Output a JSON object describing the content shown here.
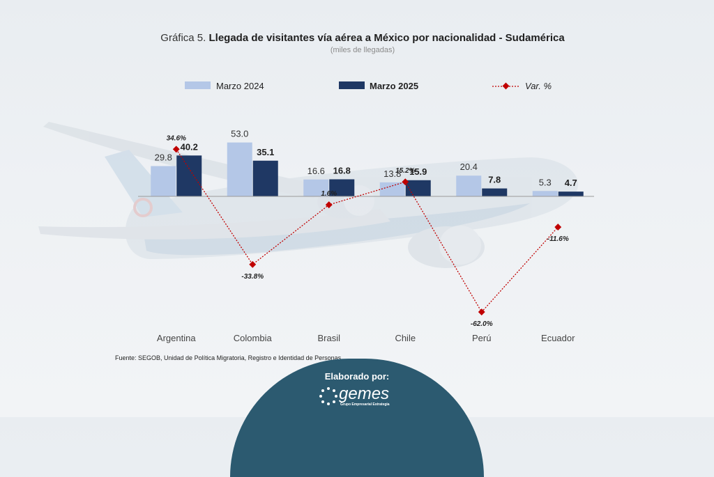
{
  "title_prefix": "Gráfica 5.",
  "title_main": "Llegada de visitantes vía aérea a México por nacionalidad - Sudamérica",
  "subtitle": "(miles de llegadas)",
  "source": "Fuente: SEGOB, Unidad de Política Migratoria, Registro e Identidad de Personas.",
  "footer": {
    "label": "Elaborado por:",
    "logo_text": "gemes",
    "logo_subtext": "Grupo Empresarial Estrategia"
  },
  "colors": {
    "bar_2024": "#b4c7e7",
    "bar_2025": "#1f3864",
    "var_line": "#c00000",
    "footer": "#2c5a70"
  },
  "chart_data": {
    "type": "bar",
    "title": "Llegada de visitantes vía aérea a México por nacionalidad - Sudamérica",
    "subtitle": "(miles de llegadas)",
    "categories": [
      "Argentina",
      "Colombia",
      "Brasil",
      "Chile",
      "Perú",
      "Ecuador"
    ],
    "series": [
      {
        "name": "Marzo 2024",
        "values": [
          29.8,
          53.0,
          16.6,
          13.8,
          20.4,
          5.3
        ],
        "labels": [
          "29.8",
          "53.0",
          "16.6",
          "13.8",
          "20.4",
          "5.3"
        ]
      },
      {
        "name": "Marzo 2025",
        "values": [
          40.2,
          35.1,
          16.8,
          15.9,
          7.8,
          4.7
        ],
        "labels": [
          "40.2",
          "35.1",
          "16.8",
          "15.9",
          "7.8",
          "4.7"
        ]
      }
    ],
    "line_series": {
      "name": "Var. %",
      "values": [
        34.6,
        -33.8,
        1.6,
        15.2,
        -62.0,
        -11.6
      ],
      "labels": [
        "34.6%",
        "-33.8%",
        "1.6%",
        "15.2%",
        "-62.0%",
        "-11.6%"
      ]
    },
    "legend_position": "top",
    "grid": false
  }
}
